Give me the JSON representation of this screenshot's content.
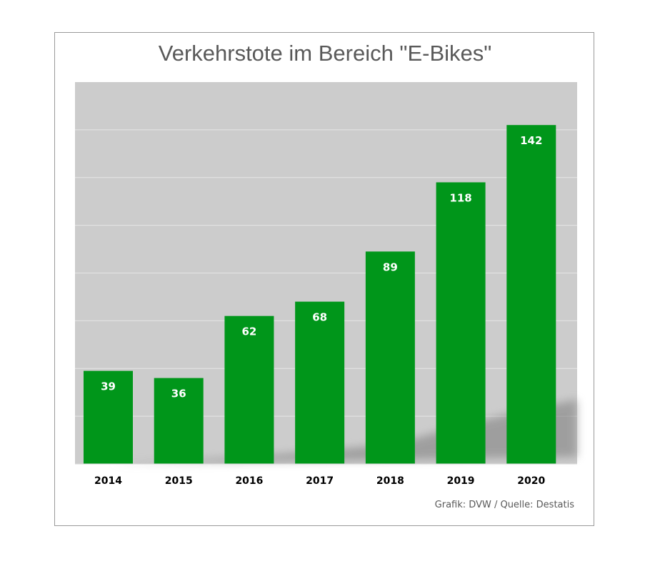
{
  "chart_data": {
    "type": "bar",
    "title": "Verkehrstote im Bereich \"E-Bikes\"",
    "xlabel": "",
    "ylabel": "",
    "categories": [
      "2014",
      "2015",
      "2016",
      "2017",
      "2018",
      "2019",
      "2020"
    ],
    "values": [
      39,
      36,
      62,
      68,
      89,
      118,
      142
    ],
    "data_labels": [
      "39",
      "36",
      "62",
      "68",
      "89",
      "118",
      "142"
    ],
    "ylim": [
      0,
      160
    ],
    "grid": true,
    "legend": "none",
    "colors": {
      "bar": "#00961a",
      "plot_background": "#cccccc",
      "gridline": "#e6e6e6",
      "label": "#ffffff",
      "tick_label": "#000000"
    }
  },
  "footer": {
    "source": "Grafik: DVW / Quelle: Destatis"
  }
}
